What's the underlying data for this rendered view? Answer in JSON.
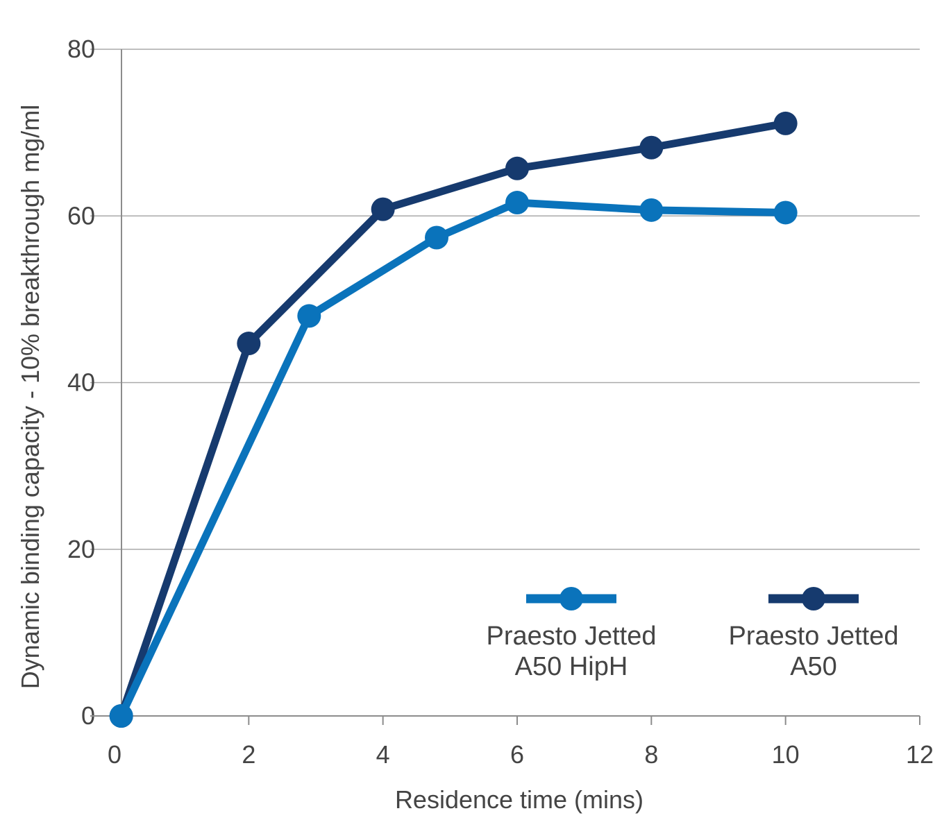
{
  "chart_data": {
    "type": "line",
    "xlabel": "Residence time (mins)",
    "ylabel": "Dynamic binding capacity - 10% breakthrough mg/ml",
    "xlim": [
      0,
      12
    ],
    "ylim": [
      0,
      80
    ],
    "x_ticks": [
      "0",
      "2",
      "4",
      "6",
      "8",
      "10",
      "12"
    ],
    "y_ticks": [
      "0",
      "20",
      "40",
      "60",
      "80"
    ],
    "grid": "horizontal",
    "legend_position": "lower-right",
    "series": [
      {
        "name_lines": [
          "Praesto Jetted",
          "A50 HipH"
        ],
        "color": "#0a73bb",
        "x": [
          0.1,
          2.9,
          4.8,
          6.0,
          8.0,
          10.0
        ],
        "y": [
          0,
          48.0,
          57.4,
          61.6,
          60.7,
          60.4
        ]
      },
      {
        "name_lines": [
          "Praesto Jetted",
          "A50"
        ],
        "color": "#163a6e",
        "x": [
          0.1,
          2.0,
          4.0,
          6.0,
          8.0,
          10.0
        ],
        "y": [
          0,
          44.7,
          60.8,
          65.7,
          68.2,
          71.1
        ]
      }
    ]
  }
}
